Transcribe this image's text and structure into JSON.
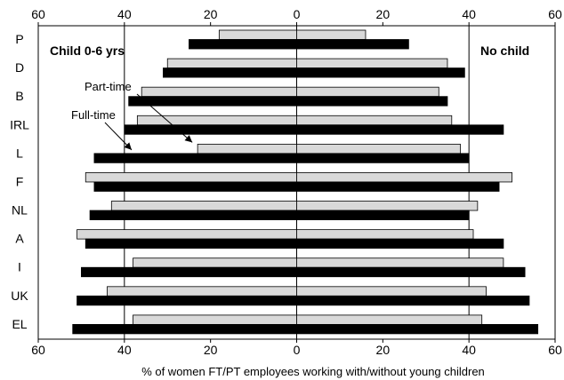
{
  "chart_data": {
    "type": "bar",
    "orientation": "horizontal",
    "xlabel": "% of women FT/PT employees working with/without young children",
    "xlim": [
      -60,
      60
    ],
    "x_ticks": [
      "60",
      "40",
      "20",
      "0",
      "20",
      "40",
      "60"
    ],
    "gridlines": [
      -40,
      0,
      40
    ],
    "panels": [
      {
        "label": "Child 0-6 yrs",
        "side": "left"
      },
      {
        "label": "No child",
        "side": "right"
      }
    ],
    "categories": [
      "P",
      "D",
      "B",
      "IRL",
      "L",
      "F",
      "NL",
      "A",
      "I",
      "UK",
      "EL"
    ],
    "series": [
      {
        "name": "Part-time",
        "color": "#d9d9d9",
        "child": [
          18,
          30,
          36,
          37,
          23,
          49,
          43,
          51,
          38,
          44,
          38
        ],
        "no_child": [
          16,
          35,
          33,
          36,
          38,
          50,
          42,
          41,
          48,
          44,
          43
        ]
      },
      {
        "name": "Full-time",
        "color": "#000000",
        "child": [
          25,
          31,
          39,
          40,
          47,
          47,
          48,
          49,
          50,
          51,
          52
        ],
        "no_child": [
          26,
          39,
          35,
          48,
          40,
          47,
          40,
          48,
          53,
          54,
          56
        ]
      }
    ],
    "annotations": [
      {
        "text": "Part-time",
        "target_series": "Part-time",
        "target_category": "L"
      },
      {
        "text": "Full-time",
        "target_series": "Full-time",
        "target_category": "L"
      }
    ]
  }
}
